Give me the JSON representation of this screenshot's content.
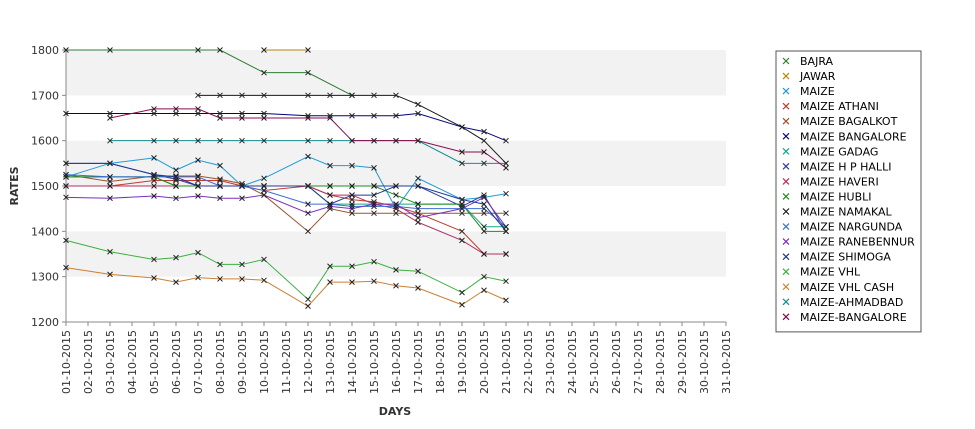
{
  "chart_data": {
    "type": "line",
    "title": "",
    "xlabel": "DAYS",
    "ylabel": "RATES",
    "ylim": [
      1200,
      1800
    ],
    "yticks": [
      1200,
      1300,
      1400,
      1500,
      1600,
      1700,
      1800
    ],
    "grid": "alternating horizontal bands",
    "legend_position": "right",
    "categories": [
      "01-10-2015",
      "02-10-2015",
      "03-10-2015",
      "04-10-2015",
      "05-10-2015",
      "06-10-2015",
      "07-10-2015",
      "08-10-2015",
      "09-10-2015",
      "10-10-2015",
      "11-10-2015",
      "12-10-2015",
      "13-10-2015",
      "14-10-2015",
      "15-10-2015",
      "16-10-2015",
      "17-10-2015",
      "18-10-2015",
      "19-10-2015",
      "20-10-2015",
      "21-10-2015",
      "22-10-2015",
      "23-10-2015",
      "24-10-2015",
      "25-10-2015",
      "26-10-2015",
      "27-10-2015",
      "28-10-2015",
      "29-10-2015",
      "30-10-2015",
      "31-10-2015"
    ],
    "series": [
      {
        "name": "BAJRA",
        "color": "#2e7d32",
        "points": [
          [
            1,
            1800
          ],
          [
            3,
            1800
          ],
          [
            7,
            1800
          ],
          [
            8,
            1800
          ],
          [
            10,
            1750
          ],
          [
            12,
            1750
          ],
          [
            14,
            1700
          ]
        ]
      },
      {
        "name": "JAWAR",
        "color": "#b8860b",
        "points": [
          [
            10,
            1800
          ],
          [
            12,
            1800
          ]
        ]
      },
      {
        "name": "MAIZE",
        "color": "#1f9bd6",
        "points": [
          [
            1,
            1520
          ],
          [
            3,
            1550
          ],
          [
            5,
            1562
          ],
          [
            6,
            1535
          ],
          [
            7,
            1557
          ],
          [
            8,
            1545
          ],
          [
            9,
            1500
          ],
          [
            10,
            1517
          ],
          [
            12,
            1565
          ],
          [
            13,
            1545
          ],
          [
            14,
            1545
          ],
          [
            15,
            1540
          ],
          [
            16,
            1450
          ],
          [
            17,
            1517
          ],
          [
            19,
            1470
          ],
          [
            20,
            1475
          ],
          [
            21,
            1483
          ]
        ]
      },
      {
        "name": "MAIZE ATHANI",
        "color": "#c0392b",
        "points": [
          [
            1,
            1500
          ],
          [
            3,
            1500
          ],
          [
            5,
            1512
          ],
          [
            6,
            1512
          ],
          [
            7,
            1512
          ],
          [
            8,
            1512
          ],
          [
            9,
            1500
          ],
          [
            10,
            1490
          ],
          [
            12,
            1500
          ],
          [
            13,
            1480
          ],
          [
            14,
            1470
          ],
          [
            15,
            1465
          ],
          [
            16,
            1455
          ],
          [
            17,
            1440
          ],
          [
            19,
            1400
          ],
          [
            20,
            1350
          ],
          [
            21,
            1350
          ]
        ]
      },
      {
        "name": "MAIZE BAGALKOT",
        "color": "#a0522d",
        "points": [
          [
            1,
            1525
          ],
          [
            3,
            1510
          ],
          [
            5,
            1522
          ],
          [
            6,
            1522
          ],
          [
            7,
            1522
          ],
          [
            8,
            1515
          ],
          [
            9,
            1505
          ],
          [
            10,
            1480
          ],
          [
            12,
            1400
          ],
          [
            13,
            1450
          ],
          [
            14,
            1440
          ],
          [
            15,
            1440
          ],
          [
            16,
            1440
          ],
          [
            17,
            1440
          ],
          [
            19,
            1440
          ],
          [
            20,
            1440
          ],
          [
            21,
            1440
          ]
        ]
      },
      {
        "name": "MAIZE BANGALORE",
        "color": "#000080",
        "points": [
          [
            1,
            1660
          ],
          [
            3,
            1660
          ],
          [
            5,
            1660
          ],
          [
            6,
            1660
          ],
          [
            7,
            1660
          ],
          [
            8,
            1660
          ],
          [
            9,
            1660
          ],
          [
            10,
            1660
          ],
          [
            12,
            1655
          ],
          [
            13,
            1655
          ],
          [
            14,
            1655
          ],
          [
            15,
            1655
          ],
          [
            16,
            1655
          ],
          [
            17,
            1660
          ],
          [
            19,
            1630
          ],
          [
            20,
            1620
          ],
          [
            21,
            1600
          ]
        ]
      },
      {
        "name": "MAIZE GADAG",
        "color": "#17a589",
        "points": [
          [
            1,
            1520
          ],
          [
            3,
            1520
          ],
          [
            5,
            1520
          ],
          [
            6,
            1500
          ],
          [
            7,
            1500
          ],
          [
            8,
            1500
          ],
          [
            9,
            1500
          ],
          [
            10,
            1500
          ],
          [
            12,
            1500
          ],
          [
            13,
            1460
          ],
          [
            14,
            1460
          ],
          [
            15,
            1460
          ],
          [
            16,
            1460
          ],
          [
            17,
            1460
          ],
          [
            19,
            1460
          ],
          [
            20,
            1410
          ],
          [
            21,
            1410
          ]
        ]
      },
      {
        "name": "MAIZE H P HALLI",
        "color": "#2c3e9e",
        "points": [
          [
            1,
            1550
          ],
          [
            3,
            1550
          ],
          [
            5,
            1525
          ],
          [
            6,
            1515
          ],
          [
            7,
            1500
          ],
          [
            8,
            1500
          ],
          [
            9,
            1500
          ],
          [
            10,
            1500
          ],
          [
            12,
            1500
          ],
          [
            13,
            1500
          ],
          [
            14,
            1500
          ],
          [
            15,
            1500
          ],
          [
            16,
            1500
          ],
          [
            17,
            1500
          ],
          [
            19,
            1455
          ],
          [
            20,
            1480
          ],
          [
            21,
            1400
          ]
        ]
      },
      {
        "name": "MAIZE HAVERI",
        "color": "#b03060",
        "points": [
          [
            1,
            1500
          ],
          [
            3,
            1500
          ],
          [
            5,
            1500
          ],
          [
            6,
            1500
          ],
          [
            7,
            1500
          ],
          [
            8,
            1500
          ],
          [
            9,
            1500
          ],
          [
            10,
            1500
          ],
          [
            12,
            1500
          ],
          [
            13,
            1480
          ],
          [
            14,
            1480
          ],
          [
            15,
            1460
          ],
          [
            16,
            1450
          ],
          [
            17,
            1420
          ],
          [
            19,
            1380
          ],
          [
            20,
            1350
          ],
          [
            21,
            1350
          ]
        ]
      },
      {
        "name": "MAIZE HUBLI",
        "color": "#228b22",
        "points": [
          [
            1,
            1520
          ],
          [
            3,
            1520
          ],
          [
            5,
            1520
          ],
          [
            6,
            1500
          ],
          [
            7,
            1500
          ],
          [
            8,
            1500
          ],
          [
            9,
            1500
          ],
          [
            10,
            1500
          ],
          [
            12,
            1500
          ],
          [
            13,
            1500
          ],
          [
            14,
            1500
          ],
          [
            15,
            1500
          ],
          [
            16,
            1480
          ],
          [
            17,
            1460
          ],
          [
            19,
            1460
          ],
          [
            20,
            1400
          ],
          [
            21,
            1400
          ]
        ]
      },
      {
        "name": "MAIZE NAMAKAL",
        "color": "#1a1a1a",
        "points": [
          [
            7,
            1700
          ],
          [
            8,
            1700
          ],
          [
            9,
            1700
          ],
          [
            10,
            1700
          ],
          [
            12,
            1700
          ],
          [
            13,
            1700
          ],
          [
            14,
            1700
          ],
          [
            15,
            1700
          ],
          [
            16,
            1700
          ],
          [
            17,
            1680
          ],
          [
            19,
            1630
          ],
          [
            20,
            1600
          ],
          [
            21,
            1550
          ]
        ]
      },
      {
        "name": "MAIZE NARGUNDA",
        "color": "#3a6fd8",
        "points": [
          [
            1,
            1525
          ],
          [
            3,
            1520
          ],
          [
            5,
            1520
          ],
          [
            6,
            1520
          ],
          [
            7,
            1520
          ],
          [
            8,
            1500
          ],
          [
            9,
            1500
          ],
          [
            10,
            1490
          ],
          [
            12,
            1460
          ],
          [
            13,
            1460
          ],
          [
            14,
            1455
          ],
          [
            15,
            1455
          ],
          [
            16,
            1455
          ],
          [
            17,
            1450
          ],
          [
            19,
            1450
          ],
          [
            20,
            1450
          ],
          [
            21,
            1410
          ]
        ]
      },
      {
        "name": "MAIZE RANEBENNUR",
        "color": "#7b2fbe",
        "points": [
          [
            1,
            1475
          ],
          [
            3,
            1473
          ],
          [
            5,
            1478
          ],
          [
            6,
            1473
          ],
          [
            7,
            1478
          ],
          [
            8,
            1473
          ],
          [
            9,
            1473
          ],
          [
            10,
            1480
          ],
          [
            12,
            1440
          ],
          [
            13,
            1455
          ],
          [
            14,
            1450
          ],
          [
            15,
            1460
          ],
          [
            16,
            1460
          ],
          [
            17,
            1430
          ],
          [
            19,
            1450
          ],
          [
            20,
            1475
          ],
          [
            21,
            1410
          ]
        ]
      },
      {
        "name": "MAIZE SHIMOGA",
        "color": "#1f3a93",
        "points": [
          [
            1,
            1550
          ],
          [
            3,
            1550
          ],
          [
            5,
            1525
          ],
          [
            6,
            1520
          ],
          [
            7,
            1500
          ],
          [
            8,
            1500
          ],
          [
            9,
            1500
          ],
          [
            10,
            1500
          ],
          [
            12,
            1500
          ],
          [
            13,
            1460
          ],
          [
            14,
            1480
          ],
          [
            15,
            1480
          ],
          [
            16,
            1500
          ],
          [
            17,
            1500
          ],
          [
            19,
            1470
          ],
          [
            20,
            1460
          ],
          [
            21,
            1400
          ]
        ]
      },
      {
        "name": "MAIZE VHL",
        "color": "#3cb043",
        "points": [
          [
            1,
            1380
          ],
          [
            3,
            1355
          ],
          [
            5,
            1338
          ],
          [
            6,
            1342
          ],
          [
            7,
            1353
          ],
          [
            8,
            1327
          ],
          [
            9,
            1327
          ],
          [
            10,
            1338
          ],
          [
            12,
            1250
          ],
          [
            13,
            1323
          ],
          [
            14,
            1323
          ],
          [
            15,
            1333
          ],
          [
            16,
            1315
          ],
          [
            17,
            1312
          ],
          [
            19,
            1265
          ],
          [
            20,
            1300
          ],
          [
            21,
            1290
          ]
        ]
      },
      {
        "name": "MAIZE VHL CASH",
        "color": "#cd7f32",
        "points": [
          [
            1,
            1320
          ],
          [
            3,
            1305
          ],
          [
            5,
            1297
          ],
          [
            6,
            1288
          ],
          [
            7,
            1298
          ],
          [
            8,
            1295
          ],
          [
            9,
            1295
          ],
          [
            10,
            1292
          ],
          [
            12,
            1235
          ],
          [
            13,
            1288
          ],
          [
            14,
            1288
          ],
          [
            15,
            1290
          ],
          [
            16,
            1280
          ],
          [
            17,
            1275
          ],
          [
            19,
            1238
          ],
          [
            20,
            1270
          ],
          [
            21,
            1248
          ]
        ]
      },
      {
        "name": "MAIZE-AHMADBAD",
        "color": "#138d90",
        "points": [
          [
            3,
            1600
          ],
          [
            5,
            1600
          ],
          [
            6,
            1600
          ],
          [
            7,
            1600
          ],
          [
            8,
            1600
          ],
          [
            9,
            1600
          ],
          [
            10,
            1600
          ],
          [
            12,
            1600
          ],
          [
            13,
            1600
          ],
          [
            14,
            1600
          ],
          [
            15,
            1600
          ],
          [
            16,
            1600
          ],
          [
            17,
            1600
          ],
          [
            19,
            1550
          ],
          [
            20,
            1550
          ],
          [
            21,
            1550
          ]
        ]
      },
      {
        "name": "MAIZE-BANGALORE",
        "color": "#8b0a50",
        "points": [
          [
            3,
            1650
          ],
          [
            5,
            1670
          ],
          [
            6,
            1670
          ],
          [
            7,
            1670
          ],
          [
            8,
            1650
          ],
          [
            9,
            1650
          ],
          [
            10,
            1650
          ],
          [
            12,
            1650
          ],
          [
            13,
            1650
          ],
          [
            14,
            1600
          ],
          [
            15,
            1600
          ],
          [
            16,
            1600
          ],
          [
            17,
            1600
          ],
          [
            19,
            1575
          ],
          [
            20,
            1575
          ],
          [
            21,
            1540
          ]
        ]
      }
    ]
  }
}
